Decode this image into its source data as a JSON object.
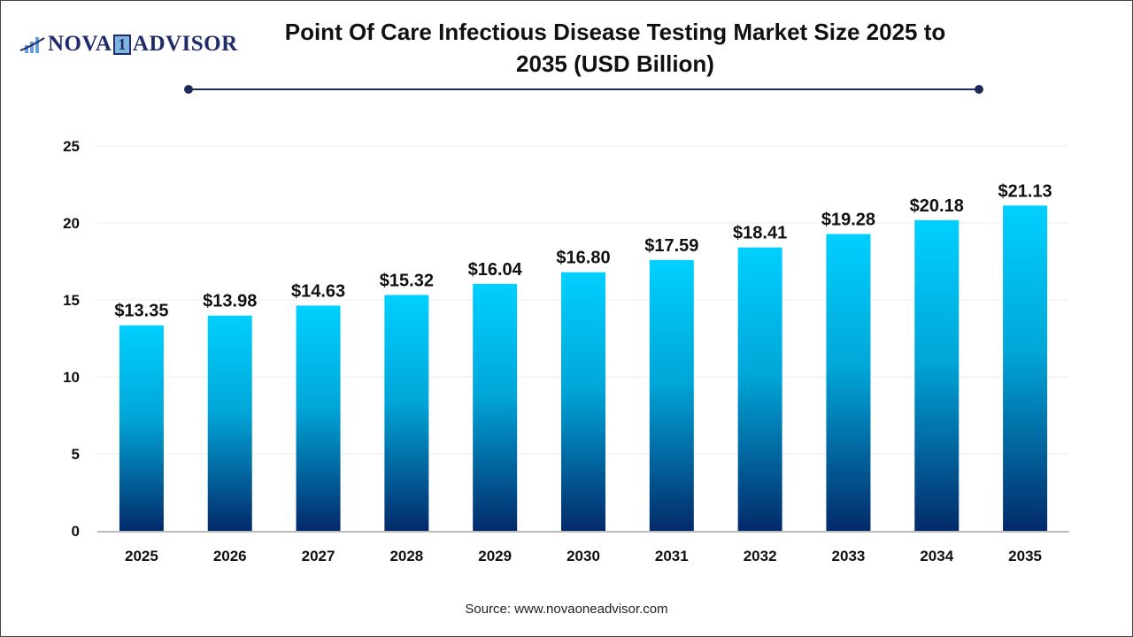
{
  "logo": {
    "text_left": "NOVA",
    "text_mid": "1",
    "text_right": "ADVISOR"
  },
  "title": "Point Of Care Infectious Disease Testing Market Size 2025 to 2035 (USD Billion)",
  "source": "Source: www.novaoneadvisor.com",
  "colors": {
    "bar_top": "#00d0ff",
    "bar_bottom": "#032a6a",
    "title_rule": "#1f2b5b"
  },
  "chart_data": {
    "type": "bar",
    "title": "Point Of Care Infectious Disease Testing Market Size 2025 to 2035 (USD Billion)",
    "xlabel": "",
    "ylabel": "",
    "ylim": [
      0,
      25
    ],
    "yticks": [
      0,
      5,
      10,
      15,
      20,
      25
    ],
    "grid": true,
    "categories": [
      "2025",
      "2026",
      "2027",
      "2028",
      "2029",
      "2030",
      "2031",
      "2032",
      "2033",
      "2034",
      "2035"
    ],
    "values": [
      13.35,
      13.98,
      14.63,
      15.32,
      16.04,
      16.8,
      17.59,
      18.41,
      19.28,
      20.18,
      21.13
    ],
    "data_labels": [
      "$13.35",
      "$13.98",
      "$14.63",
      "$15.32",
      "$16.04",
      "$16.80",
      "$17.59",
      "$18.41",
      "$19.28",
      "$20.18",
      "$21.13"
    ]
  }
}
